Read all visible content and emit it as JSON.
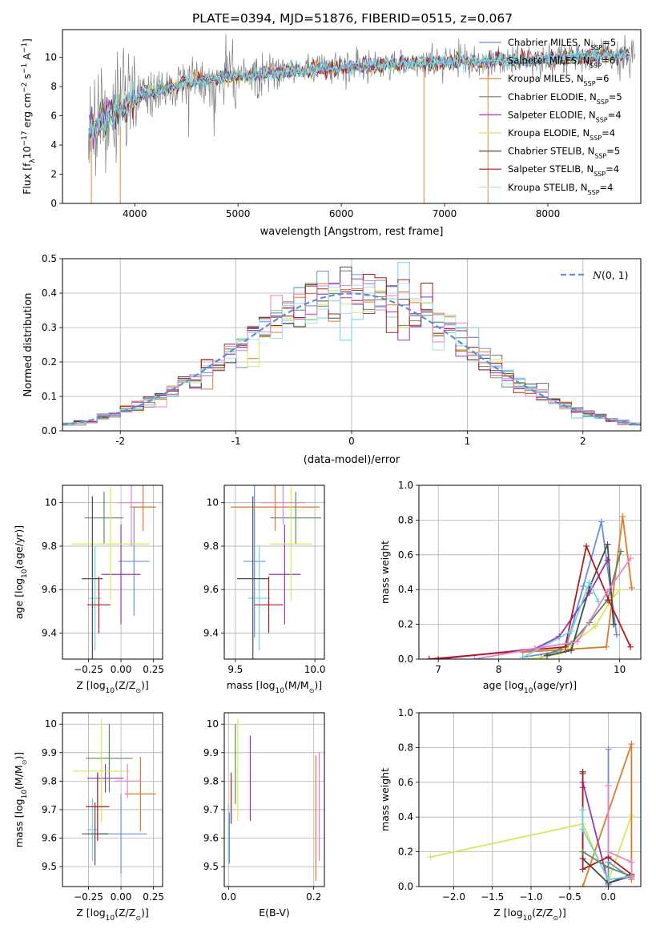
{
  "figure": {
    "title": "PLATE=0394, MJD=51876, FIBERID=0515, z=0.067"
  },
  "colors": {
    "chabrier_miles": "#6a8fd8",
    "salpeter_miles": "#6fd3e0",
    "kroupa_miles": "#e07a2a",
    "chabrier_elodie": "#5e8a5e",
    "salpeter_elodie": "#9a35b8",
    "kroupa_elodie": "#d4e85a",
    "chabrier_stelib": "#4a4a4a",
    "salpeter_stelib": "#b01a1a",
    "kroupa_stelib": "#a0e4ee",
    "data_gray": "#808080",
    "pink": "#e585c8",
    "normal_curve": "#5b8fd6",
    "grid": "#b0b0b0"
  },
  "chart_data": [
    {
      "id": "spectrum",
      "type": "line",
      "title": "PLATE=0394, MJD=51876, FIBERID=0515, z=0.067",
      "xlabel": "wavelength [Angstrom, rest frame]",
      "ylabel_parts": [
        "Flux [f",
        "λ",
        "10",
        "−17",
        " erg cm",
        "−2",
        " s",
        "−1",
        " A",
        "−1",
        "]"
      ],
      "xlim": [
        3300,
        8900
      ],
      "ylim": [
        0,
        11.9
      ],
      "xticks": [
        4000,
        5000,
        6000,
        7000,
        8000
      ],
      "yticks": [
        0,
        2,
        4,
        6,
        8,
        10
      ],
      "grid": false,
      "legend_position": "right",
      "legend": [
        {
          "main": "Chabrier MILES, N",
          "sub": "SSP",
          "tail": "=5",
          "color_key": "chabrier_miles"
        },
        {
          "main": "Salpeter MILES, N",
          "sub": "SSP",
          "tail": "=6",
          "color_key": "salpeter_miles"
        },
        {
          "main": "Kroupa MILES, N",
          "sub": "SSP",
          "tail": "=6",
          "color_key": "kroupa_miles"
        },
        {
          "main": "Chabrier ELODIE, N",
          "sub": "SSP",
          "tail": "=5",
          "color_key": "chabrier_elodie"
        },
        {
          "main": "Salpeter ELODIE, N",
          "sub": "SSP",
          "tail": "=4",
          "color_key": "salpeter_elodie"
        },
        {
          "main": "Kroupa ELODIE, N",
          "sub": "SSP",
          "tail": "=4",
          "color_key": "kroupa_elodie"
        },
        {
          "main": "Chabrier STELIB, N",
          "sub": "SSP",
          "tail": "=5",
          "color_key": "chabrier_stelib"
        },
        {
          "main": "Salpeter STELIB, N",
          "sub": "SSP",
          "tail": "=4",
          "color_key": "salpeter_stelib"
        },
        {
          "main": "Kroupa STELIB, N",
          "sub": "SSP",
          "tail": "=4",
          "color_key": "kroupa_stelib"
        }
      ],
      "continuum": [
        [
          3550,
          5.0
        ],
        [
          3650,
          5.5
        ],
        [
          3800,
          6.3
        ],
        [
          3950,
          6.9
        ],
        [
          4100,
          7.6
        ],
        [
          4300,
          7.8
        ],
        [
          4500,
          8.3
        ],
        [
          4700,
          8.5
        ],
        [
          5000,
          8.7
        ],
        [
          5300,
          8.9
        ],
        [
          5600,
          9.1
        ],
        [
          5900,
          9.3
        ],
        [
          6200,
          9.4
        ],
        [
          6500,
          9.5
        ],
        [
          6800,
          9.6
        ],
        [
          7100,
          9.7
        ],
        [
          7400,
          9.75
        ],
        [
          7700,
          9.8
        ],
        [
          8000,
          9.9
        ],
        [
          8300,
          10.0
        ],
        [
          8800,
          10.2
        ]
      ]
    },
    {
      "id": "residuals",
      "type": "histogram",
      "xlabel": "(data-model)/error",
      "ylabel": "Normed distribution",
      "xlim": [
        -2.5,
        2.5
      ],
      "ylim": [
        0,
        0.5
      ],
      "xticks": [
        -2,
        -1,
        0,
        1,
        2
      ],
      "yticks": [
        0.0,
        0.1,
        0.2,
        0.3,
        0.4,
        0.5
      ],
      "grid": true,
      "legend_position": "top-right",
      "legend_label_main": "N",
      "legend_label_tail": "(0, 1)",
      "bin_width": 0.1
    },
    {
      "id": "age_vs_Z",
      "type": "scatter",
      "xlabel_main": "Z [log",
      "xlabel_sub": "10",
      "xlabel_tail": "(Z/Z",
      "xlabel_end": ")]",
      "ylabel_main": "age  [log",
      "ylabel_sub": "10",
      "ylabel_tail": "(age/yr)]",
      "xlim": [
        -0.45,
        0.32
      ],
      "ylim": [
        9.28,
        10.08
      ],
      "xticks": [
        -0.25,
        0.0,
        0.25
      ],
      "xticklabels": [
        "−0.25",
        "0.00",
        "0.25"
      ],
      "yticks": [
        9.4,
        9.6,
        9.8,
        10.0
      ],
      "grid": true,
      "points": [
        {
          "x": 0.1,
          "xerr": 0.12,
          "y": 9.73,
          "yerr": 0.25,
          "color_key": "chabrier_miles"
        },
        {
          "x": -0.2,
          "xerr": 0.05,
          "y": 9.56,
          "yerr": 0.24,
          "color_key": "salpeter_miles"
        },
        {
          "x": 0.17,
          "xerr": 0.1,
          "y": 9.98,
          "yerr": 0.11,
          "color_key": "kroupa_miles"
        },
        {
          "x": -0.13,
          "xerr": 0.15,
          "y": 9.93,
          "yerr": 0.12,
          "color_key": "chabrier_elodie"
        },
        {
          "x": 0.0,
          "xerr": 0.15,
          "y": 9.67,
          "yerr": 0.23,
          "color_key": "salpeter_elodie"
        },
        {
          "x": -0.08,
          "xerr": 0.3,
          "y": 9.81,
          "yerr": 0.26,
          "color_key": "kroupa_elodie"
        },
        {
          "x": -0.22,
          "xerr": 0.08,
          "y": 9.65,
          "yerr": 0.38,
          "color_key": "chabrier_stelib"
        },
        {
          "x": -0.17,
          "xerr": 0.09,
          "y": 9.53,
          "yerr": 0.13,
          "color_key": "salpeter_stelib"
        },
        {
          "x": 0.08,
          "xerr": 0.1,
          "y": 10.0,
          "yerr": 0.2,
          "color_key": "pink"
        }
      ]
    },
    {
      "id": "age_vs_mass",
      "type": "scatter",
      "xlabel_main": "mass [log",
      "xlabel_sub": "10",
      "xlabel_tail": "(M/M",
      "xlabel_end": ")]",
      "xlim": [
        9.43,
        10.06
      ],
      "ylim": [
        9.28,
        10.08
      ],
      "xticks": [
        9.5,
        10.0
      ],
      "xticklabels": [
        "9.5",
        "10.0"
      ],
      "yticks": [
        9.4,
        9.6,
        9.8,
        10.0
      ],
      "grid": true,
      "points": [
        {
          "x": 9.62,
          "xerr": 0.07,
          "y": 9.73,
          "yerr": 0.35,
          "color_key": "chabrier_miles"
        },
        {
          "x": 9.65,
          "xerr": 0.07,
          "y": 9.56,
          "yerr": 0.24,
          "color_key": "salpeter_miles"
        },
        {
          "x": 9.75,
          "xerr": 0.28,
          "y": 9.98,
          "yerr": 0.11,
          "color_key": "kroupa_miles"
        },
        {
          "x": 9.88,
          "xerr": 0.16,
          "y": 9.93,
          "yerr": 0.12,
          "color_key": "chabrier_elodie"
        },
        {
          "x": 9.81,
          "xerr": 0.1,
          "y": 9.67,
          "yerr": 0.23,
          "color_key": "salpeter_elodie"
        },
        {
          "x": 9.85,
          "xerr": 0.13,
          "y": 9.81,
          "yerr": 0.26,
          "color_key": "kroupa_elodie"
        },
        {
          "x": 9.61,
          "xerr": 0.1,
          "y": 9.65,
          "yerr": 0.38,
          "color_key": "chabrier_stelib"
        },
        {
          "x": 9.71,
          "xerr": 0.09,
          "y": 9.53,
          "yerr": 0.13,
          "color_key": "salpeter_stelib"
        },
        {
          "x": 9.8,
          "xerr": 0.14,
          "y": 10.0,
          "yerr": 0.1,
          "color_key": "pink"
        }
      ]
    },
    {
      "id": "mass_weight_vs_age",
      "type": "line",
      "xlabel_main": "age  [log",
      "xlabel_sub": "10",
      "xlabel_tail": "(age/yr)]",
      "ylabel": "mass weight",
      "xlim": [
        6.68,
        10.35
      ],
      "ylim": [
        0.0,
        1.0
      ],
      "xticks": [
        7,
        8,
        9,
        10
      ],
      "yticks": [
        0.0,
        0.2,
        0.4,
        0.6,
        0.8,
        1.0
      ],
      "grid": true,
      "series": [
        {
          "color_key": "chabrier_miles",
          "x": [
            8.4,
            9.1,
            9.4,
            9.7,
            9.95
          ],
          "y": [
            0.01,
            0.05,
            0.42,
            0.79,
            0.14
          ]
        },
        {
          "color_key": "kroupa_miles",
          "x": [
            8.4,
            9.78,
            10.05,
            10.2
          ],
          "y": [
            0.04,
            0.07,
            0.82,
            0.41
          ]
        },
        {
          "color_key": "chabrier_elodie",
          "x": [
            8.7,
            9.2,
            9.5,
            9.8,
            10.02
          ],
          "y": [
            0.01,
            0.09,
            0.21,
            0.34,
            0.62
          ]
        },
        {
          "color_key": "salpeter_elodie",
          "x": [
            7.0,
            8.6,
            9.0,
            9.5,
            9.8
          ],
          "y": [
            0.0,
            0.06,
            0.13,
            0.38,
            0.57
          ]
        },
        {
          "color_key": "kroupa_elodie",
          "x": [
            8.5,
            9.0,
            9.6,
            9.82,
            10.0
          ],
          "y": [
            0.0,
            0.03,
            0.19,
            0.32,
            0.4
          ]
        },
        {
          "color_key": "chabrier_stelib",
          "x": [
            8.8,
            9.2,
            9.5,
            9.8,
            9.9
          ],
          "y": [
            0.02,
            0.05,
            0.41,
            0.66,
            0.2
          ]
        },
        {
          "color_key": "salpeter_stelib",
          "x": [
            6.85,
            9.1,
            9.45,
            9.82,
            10.18
          ],
          "y": [
            0.0,
            0.07,
            0.65,
            0.34,
            0.07
          ]
        },
        {
          "color_key": "salpeter_miles",
          "x": [
            8.4,
            9.2,
            9.5,
            9.65
          ],
          "y": [
            0.01,
            0.16,
            0.44,
            0.33
          ]
        },
        {
          "color_key": "pink",
          "x": [
            7.6,
            8.6,
            9.3,
            9.8,
            10.18
          ],
          "y": [
            0.0,
            0.06,
            0.1,
            0.39,
            0.58
          ]
        }
      ]
    },
    {
      "id": "mass_vs_Z",
      "type": "scatter",
      "xlabel_main": "Z [log",
      "xlabel_sub": "10",
      "xlabel_tail": "(Z/Z",
      "xlabel_end": ")]",
      "ylabel_main": "mass [log",
      "ylabel_sub": "10",
      "ylabel_tail": "(M/M",
      "ylabel_end": ")]",
      "xlim": [
        -0.45,
        0.32
      ],
      "ylim": [
        9.43,
        10.04
      ],
      "xticks": [
        -0.25,
        0.0,
        0.25
      ],
      "xticklabels": [
        "−0.25",
        "0.00",
        "0.25"
      ],
      "yticks": [
        9.5,
        9.6,
        9.7,
        9.8,
        9.9,
        10.0
      ],
      "grid": true,
      "points": [
        {
          "x": 0.0,
          "xerr": 0.2,
          "y": 9.615,
          "yerr": 0.14,
          "color_key": "chabrier_miles"
        },
        {
          "x": -0.22,
          "xerr": 0.04,
          "y": 9.63,
          "yerr": 0.11,
          "color_key": "salpeter_miles"
        },
        {
          "x": 0.15,
          "xerr": 0.12,
          "y": 9.755,
          "yerr": 0.13,
          "color_key": "kroupa_miles"
        },
        {
          "x": -0.09,
          "xerr": 0.18,
          "y": 9.88,
          "yerr": 0.12,
          "color_key": "chabrier_elodie"
        },
        {
          "x": -0.12,
          "xerr": 0.14,
          "y": 9.81,
          "yerr": 0.05,
          "color_key": "salpeter_elodie"
        },
        {
          "x": -0.15,
          "xerr": 0.22,
          "y": 9.835,
          "yerr": 0.18,
          "color_key": "kroupa_elodie"
        },
        {
          "x": -0.2,
          "xerr": 0.1,
          "y": 9.615,
          "yerr": 0.11,
          "color_key": "chabrier_stelib"
        },
        {
          "x": -0.18,
          "xerr": 0.09,
          "y": 9.71,
          "yerr": 0.12,
          "color_key": "salpeter_stelib"
        },
        {
          "x": 0.05,
          "xerr": 0.1,
          "y": 9.8,
          "yerr": 0.06,
          "color_key": "pink"
        }
      ]
    },
    {
      "id": "mass_vs_ebv",
      "type": "scatter",
      "xlabel": "E(B-V)",
      "xlim": [
        -0.01,
        0.225
      ],
      "ylim": [
        9.43,
        10.04
      ],
      "xticks": [
        0.0,
        0.2
      ],
      "xticklabels": [
        "0.0",
        "0.2"
      ],
      "yticks": [
        9.5,
        9.6,
        9.7,
        9.8,
        9.9,
        10.0
      ],
      "grid": true,
      "points": [
        {
          "x": 0.0,
          "y": 9.62,
          "yerr": 0.1,
          "color_key": "salpeter_miles"
        },
        {
          "x": 0.002,
          "y": 9.6,
          "yerr": 0.09,
          "color_key": "chabrier_miles"
        },
        {
          "x": 0.006,
          "y": 9.74,
          "yerr": 0.09,
          "color_key": "salpeter_stelib"
        },
        {
          "x": 0.016,
          "y": 9.86,
          "yerr": 0.14,
          "color_key": "chabrier_elodie"
        },
        {
          "x": 0.022,
          "y": 9.84,
          "yerr": 0.18,
          "color_key": "kroupa_elodie"
        },
        {
          "x": 0.051,
          "y": 9.81,
          "yerr": 0.15,
          "color_key": "salpeter_elodie"
        },
        {
          "x": 0.205,
          "y": 9.67,
          "yerr": 0.22,
          "color_key": "kroupa_miles"
        },
        {
          "x": 0.213,
          "y": 9.71,
          "yerr": 0.19,
          "color_key": "pink"
        }
      ]
    },
    {
      "id": "mass_weight_vs_Z",
      "type": "line",
      "xlabel_main": "Z [log",
      "xlabel_sub": "10",
      "xlabel_tail": "(Z/Z",
      "xlabel_end": ")]",
      "ylabel": "mass weight",
      "xlim": [
        -2.45,
        0.42
      ],
      "ylim": [
        0.0,
        1.0
      ],
      "xticks": [
        -2.0,
        -1.5,
        -1.0,
        -0.5,
        0.0
      ],
      "xticklabels": [
        "−2.0",
        "−1.5",
        "−1.0",
        "−0.5",
        "0.0"
      ],
      "yticks": [
        0.0,
        0.2,
        0.4,
        0.6,
        0.8,
        1.0
      ],
      "grid": true,
      "series": [
        {
          "color_key": "kroupa_elodie",
          "x": [
            -2.3,
            -0.33,
            0.0,
            0.3
          ],
          "y": [
            0.17,
            0.36,
            0.03,
            0.41
          ]
        },
        {
          "color_key": "chabrier_miles",
          "x": [
            0.0,
            0.0,
            0.0,
            0.3
          ],
          "y": [
            0.79,
            0.01,
            0.14,
            0.05
          ]
        },
        {
          "color_key": "kroupa_miles",
          "x": [
            -0.33,
            0.3,
            0.3,
            0.3
          ],
          "y": [
            0.0,
            0.82,
            0.06,
            0.04
          ]
        },
        {
          "color_key": "salpeter_elodie",
          "x": [
            -0.33,
            -0.33,
            0.0,
            0.3
          ],
          "y": [
            0.57,
            0.6,
            0.02,
            0.06
          ]
        },
        {
          "color_key": "chabrier_stelib",
          "x": [
            -0.33,
            -0.33,
            0.0,
            0.3
          ],
          "y": [
            0.66,
            0.16,
            0.02,
            0.07
          ]
        },
        {
          "color_key": "salpeter_stelib",
          "x": [
            -0.33,
            -0.33,
            0.0,
            0.3
          ],
          "y": [
            0.65,
            0.1,
            0.17,
            0.07
          ]
        },
        {
          "color_key": "salpeter_miles",
          "x": [
            -0.33,
            -0.33,
            0.0,
            0.3
          ],
          "y": [
            0.44,
            0.33,
            0.04,
            0.06
          ]
        },
        {
          "color_key": "chabrier_elodie",
          "x": [
            -0.33,
            0.0,
            0.3
          ],
          "y": [
            0.2,
            0.11,
            0.06
          ]
        },
        {
          "color_key": "pink",
          "x": [
            0.0,
            0.0,
            0.3,
            0.3
          ],
          "y": [
            0.58,
            0.2,
            0.14,
            0.06
          ]
        }
      ]
    }
  ]
}
